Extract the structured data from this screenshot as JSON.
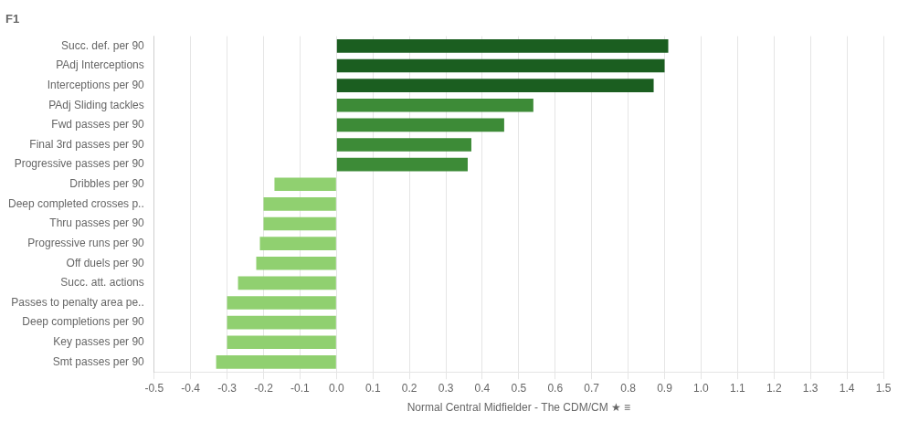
{
  "chart_data": {
    "type": "bar",
    "orientation": "horizontal",
    "title": "F1",
    "xlabel": "Normal Central Midfielder - The CDM/CM ★ ≡",
    "categories": [
      "Succ. def. per 90",
      "PAdj Interceptions",
      "Interceptions per 90",
      "PAdj Sliding tackles",
      "Fwd passes per 90",
      "Final 3rd passes per 90",
      "Progressive passes per 90",
      "Dribbles per 90",
      "Deep completed crosses p..",
      "Thru passes per 90",
      "Progressive runs per 90",
      "Off duels per 90",
      "Succ. att. actions",
      "Passes to penalty area pe..",
      "Deep completions per 90",
      "Key passes per 90",
      "Smt passes per 90"
    ],
    "values": [
      0.91,
      0.9,
      0.87,
      0.54,
      0.46,
      0.37,
      0.36,
      -0.17,
      -0.2,
      -0.2,
      -0.21,
      -0.22,
      -0.27,
      -0.3,
      -0.3,
      -0.3,
      -0.33
    ],
    "colors": [
      "#1b5e20",
      "#1b5e20",
      "#1b5e20",
      "#3d8b37",
      "#3d8b37",
      "#3d8b37",
      "#3d8b37",
      "#90d070",
      "#90d070",
      "#90d070",
      "#90d070",
      "#90d070",
      "#90d070",
      "#90d070",
      "#90d070",
      "#90d070",
      "#90d070"
    ],
    "xlim": [
      -0.5,
      1.5
    ],
    "xticks": [
      -0.5,
      -0.4,
      -0.3,
      -0.2,
      -0.1,
      {
        "value": 0,
        "label": "0.0"
      },
      0.1,
      0.2,
      0.3,
      0.4,
      0.5,
      0.6,
      0.7,
      0.8,
      0.9,
      {
        "value": 1,
        "label": "1.0"
      },
      1.1,
      1.2,
      1.3,
      1.4,
      1.5
    ],
    "grid": true
  }
}
